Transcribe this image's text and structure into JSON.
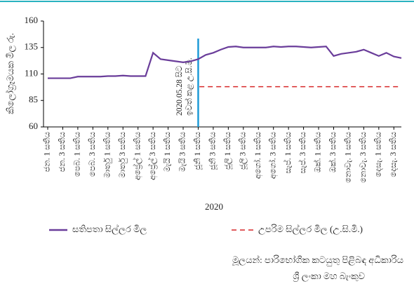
{
  "chart_data": {
    "type": "line",
    "y_label": "කිලෝග්‍රෑමයක මිල රු.",
    "x_label": "2020",
    "ylim": [
      60,
      160
    ],
    "yticks": [
      60,
      85,
      110,
      135,
      160
    ],
    "categories": [
      "ජන. 1 සතිය",
      null,
      "ජන. 3 සතිය",
      null,
      "පෙබ. 1 සතිය",
      null,
      "පෙබ. 3 සතිය",
      null,
      "මාර්තු 1 සතිය",
      null,
      "මාර්තු 3 සතිය",
      null,
      "අප්‍රේල් 1 සතිය",
      null,
      "අප්‍රේල් 3 සතිය",
      null,
      "මැයි 1 සතිය",
      null,
      "මැයි 3 සතිය",
      null,
      "ජූනි 1 සතිය",
      null,
      "ජූනි 3 සතිය",
      null,
      "ජූලි 1 සතිය",
      null,
      "ජූලි 3 සතිය",
      null,
      "අගෝ. 1 සතිය",
      null,
      "අගෝ. 3 සතිය",
      null,
      "සැප්. 1 සතිය",
      null,
      "සැප්. 3 සතිය",
      null,
      "ඔක්. 1 සතිය",
      null,
      "ඔක්. 3 සතිය",
      null,
      "නොවැ. 1 සතිය",
      null,
      "නොවැ. 3 සතිය",
      null,
      "දෙසැ. 1 සතිය",
      null,
      "දෙසැ. 3 සතිය",
      null
    ],
    "series": [
      {
        "name": "සතිපතා සිල්ලර මිල",
        "color": "#6a3d9a",
        "values": [
          106,
          106,
          106,
          106,
          107.5,
          107.5,
          107.5,
          107.5,
          108,
          108,
          108.5,
          108,
          108,
          108,
          130,
          124,
          123,
          122,
          121,
          122,
          124,
          128,
          130,
          133,
          135.5,
          136,
          135,
          135,
          135,
          135,
          136,
          135.5,
          136,
          136,
          135.5,
          135,
          135.5,
          136,
          127,
          129,
          130,
          131,
          133,
          130,
          127,
          130,
          126.5,
          125
        ]
      }
    ],
    "reference_line": {
      "name": "උපරිම සිල්ලර මිල (උ.සි.මි.)",
      "color": "#d62728",
      "value": 98
    },
    "annotation": {
      "category_index": 20,
      "color": "#1f9bd7",
      "text": [
        "2020.05.28 සිට",
        "ඉවත් කළ උ.සි.මි."
      ]
    },
    "source": [
      "මූලයන්: පාරිභෝගික කටයුතු පිළිබඳ අධිකාරිය",
      "ශ්‍රී ලංකා මහ බැංකුව"
    ],
    "frame_color": "#2ab3c0"
  }
}
